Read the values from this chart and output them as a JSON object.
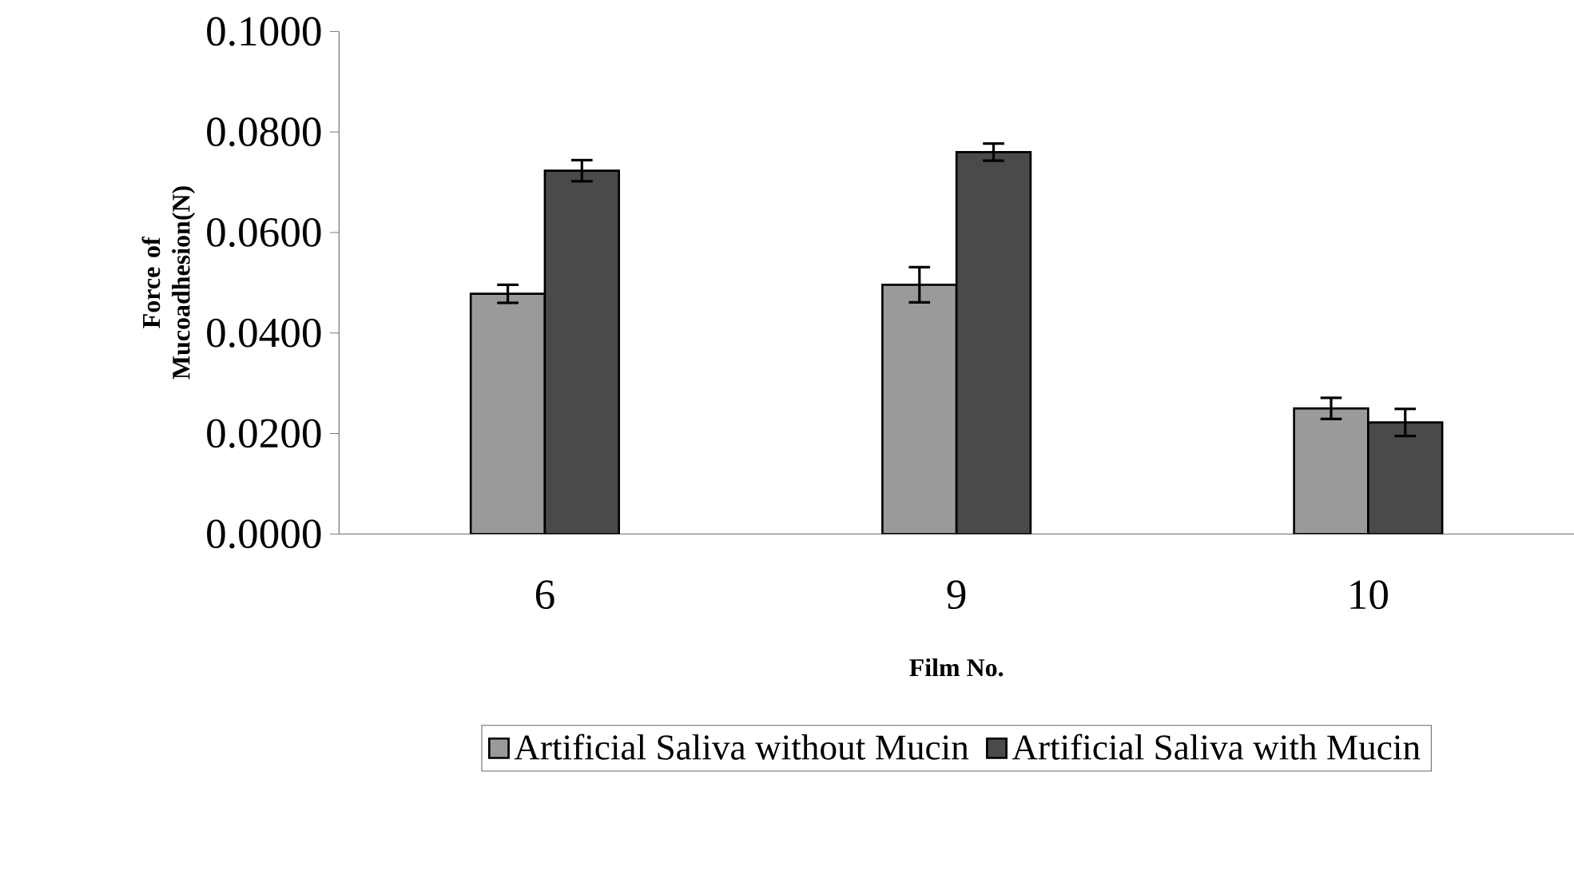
{
  "chart_data": {
    "type": "bar",
    "xlabel": "Film No.",
    "ylabel": "Force of Mucoadhesion(N)",
    "categories": [
      "6",
      "9",
      "10"
    ],
    "series": [
      {
        "name": "Artificial Saliva without Mucin",
        "color": "#9a9a9a",
        "values": [
          0.0478,
          0.0496,
          0.025
        ],
        "errors": [
          0.0018,
          0.0035,
          0.0021
        ]
      },
      {
        "name": "Artificial Saliva with Mucin",
        "color": "#4a4a4a",
        "values": [
          0.0723,
          0.076,
          0.0222
        ],
        "errors": [
          0.0021,
          0.0017,
          0.0027
        ]
      }
    ],
    "ylim": [
      0,
      0.1
    ],
    "yticks": [
      {
        "value": 0,
        "label": "0.0000"
      },
      {
        "value": 0.02,
        "label": "0.0200"
      },
      {
        "value": 0.04,
        "label": "0.0400"
      },
      {
        "value": 0.06,
        "label": "0.0600"
      },
      {
        "value": 0.08,
        "label": "0.0800"
      },
      {
        "value": 0.1,
        "label": "0.1000"
      }
    ],
    "grid": false,
    "legend": "bottom"
  }
}
